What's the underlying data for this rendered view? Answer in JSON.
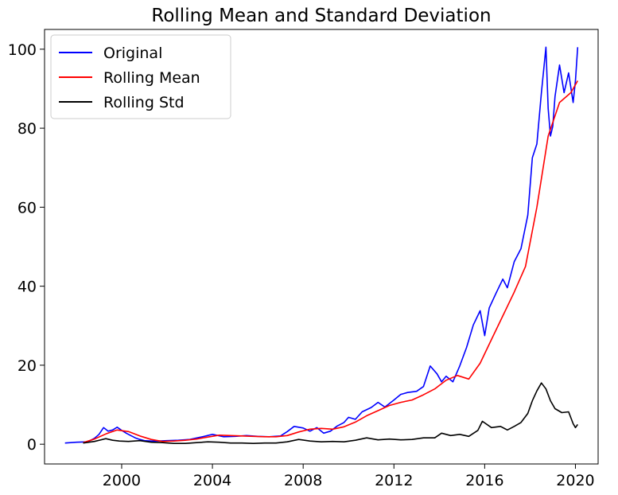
{
  "chart_data": {
    "type": "line",
    "title": "Rolling Mean and Standard Deviation",
    "xlabel": "",
    "ylabel": "",
    "xlim": [
      1996.6,
      2021.0
    ],
    "ylim": [
      -5.0,
      105.0
    ],
    "xticks": [
      2000,
      2004,
      2008,
      2012,
      2016,
      2020
    ],
    "xtick_labels": [
      "2000",
      "2004",
      "2008",
      "2012",
      "2016",
      "2020"
    ],
    "yticks": [
      0,
      20,
      40,
      60,
      80,
      100
    ],
    "ytick_labels": [
      "0",
      "20",
      "40",
      "60",
      "80",
      "100"
    ],
    "grid": false,
    "legend_position": "top-left",
    "series": [
      {
        "name": "Original",
        "color": "#0000ff",
        "x": [
          1997.5,
          1998.0,
          1998.5,
          1998.8,
          1999.0,
          1999.2,
          1999.4,
          1999.6,
          1999.8,
          2000.0,
          2000.2,
          2000.4,
          2000.6,
          2000.8,
          2001.0,
          2001.3,
          2001.6,
          2002.0,
          2002.5,
          2003.0,
          2003.5,
          2004.0,
          2004.5,
          2005.0,
          2005.5,
          2006.0,
          2006.5,
          2007.0,
          2007.3,
          2007.6,
          2008.0,
          2008.3,
          2008.6,
          2008.9,
          2009.2,
          2009.5,
          2009.8,
          2010.0,
          2010.3,
          2010.6,
          2011.0,
          2011.3,
          2011.6,
          2012.0,
          2012.3,
          2012.6,
          2013.0,
          2013.3,
          2013.6,
          2013.9,
          2014.1,
          2014.3,
          2014.6,
          2014.9,
          2015.2,
          2015.5,
          2015.8,
          2016.0,
          2016.2,
          2016.5,
          2016.8,
          2017.0,
          2017.3,
          2017.6,
          2017.9,
          2018.1,
          2018.3,
          2018.5,
          2018.7,
          2018.8,
          2018.9,
          2019.0,
          2019.1,
          2019.3,
          2019.5,
          2019.7,
          2019.9,
          2020.0,
          2020.1
        ],
        "y": [
          0.3,
          0.5,
          0.6,
          1.5,
          2.5,
          4.2,
          3.3,
          3.6,
          4.3,
          3.5,
          2.8,
          2.2,
          1.6,
          1.2,
          0.9,
          0.8,
          0.8,
          0.9,
          1.0,
          1.2,
          1.8,
          2.5,
          1.9,
          2.0,
          2.2,
          2.0,
          1.9,
          2.1,
          3.2,
          4.5,
          4.1,
          3.3,
          4.2,
          2.8,
          3.3,
          4.6,
          5.5,
          6.8,
          6.3,
          8.2,
          9.3,
          10.6,
          9.4,
          11.2,
          12.6,
          13.1,
          13.4,
          14.6,
          19.8,
          17.8,
          15.8,
          17.2,
          15.8,
          19.8,
          24.5,
          30.2,
          33.8,
          27.5,
          34.5,
          38.2,
          41.8,
          39.6,
          46.2,
          49.5,
          58.0,
          72.5,
          76.0,
          89.0,
          100.5,
          85.0,
          78.0,
          80.5,
          88.0,
          96.0,
          89.0,
          94.0,
          86.5,
          92.0,
          100.5
        ]
      },
      {
        "name": "Rolling Mean",
        "color": "#ff0000",
        "x": [
          1998.3,
          1998.8,
          1999.3,
          1999.8,
          2000.3,
          2000.8,
          2001.3,
          2001.8,
          2002.3,
          2002.8,
          2003.3,
          2003.8,
          2004.3,
          2004.8,
          2005.3,
          2005.8,
          2006.3,
          2006.8,
          2007.3,
          2007.8,
          2008.3,
          2008.8,
          2009.3,
          2009.8,
          2010.3,
          2010.8,
          2011.3,
          2011.8,
          2012.3,
          2012.8,
          2013.3,
          2013.8,
          2014.3,
          2014.8,
          2015.3,
          2015.8,
          2016.3,
          2016.8,
          2017.3,
          2017.8,
          2018.3,
          2018.8,
          2019.3,
          2019.8,
          2020.1
        ],
        "y": [
          0.4,
          1.3,
          2.6,
          3.6,
          3.2,
          2.1,
          1.2,
          0.7,
          0.8,
          1.0,
          1.3,
          1.8,
          2.3,
          2.2,
          2.1,
          2.0,
          1.9,
          1.9,
          2.2,
          3.1,
          3.8,
          4.0,
          3.8,
          4.4,
          5.6,
          7.2,
          8.5,
          9.8,
          10.6,
          11.2,
          12.5,
          14.0,
          16.2,
          17.4,
          16.5,
          20.5,
          26.5,
          32.5,
          38.5,
          45.0,
          60.0,
          78.0,
          86.5,
          89.0,
          92.0
        ]
      },
      {
        "name": "Rolling Std",
        "color": "#000000",
        "x": [
          1998.3,
          1998.8,
          1999.3,
          1999.6,
          1999.9,
          2000.3,
          2000.8,
          2001.3,
          2001.8,
          2002.3,
          2002.8,
          2003.3,
          2003.8,
          2004.3,
          2004.8,
          2005.3,
          2005.8,
          2006.3,
          2006.8,
          2007.3,
          2007.8,
          2008.3,
          2008.8,
          2009.3,
          2009.8,
          2010.3,
          2010.8,
          2011.3,
          2011.8,
          2012.3,
          2012.8,
          2013.3,
          2013.8,
          2014.1,
          2014.5,
          2014.9,
          2015.3,
          2015.7,
          2015.9,
          2016.3,
          2016.7,
          2017.0,
          2017.3,
          2017.6,
          2017.9,
          2018.1,
          2018.3,
          2018.5,
          2018.7,
          2018.9,
          2019.1,
          2019.4,
          2019.7,
          2019.9,
          2020.0,
          2020.1
        ],
        "y": [
          0.3,
          0.7,
          1.4,
          1.0,
          0.8,
          0.7,
          0.9,
          0.5,
          0.4,
          0.2,
          0.2,
          0.4,
          0.6,
          0.5,
          0.3,
          0.3,
          0.2,
          0.3,
          0.3,
          0.6,
          1.2,
          0.8,
          0.6,
          0.7,
          0.6,
          1.0,
          1.6,
          1.1,
          1.3,
          1.1,
          1.2,
          1.6,
          1.6,
          2.8,
          2.2,
          2.5,
          2.0,
          3.5,
          5.8,
          4.2,
          4.5,
          3.6,
          4.5,
          5.5,
          7.8,
          11.0,
          13.5,
          15.5,
          14.0,
          11.0,
          9.0,
          8.0,
          8.2,
          5.2,
          4.2,
          5.0
        ]
      }
    ]
  }
}
